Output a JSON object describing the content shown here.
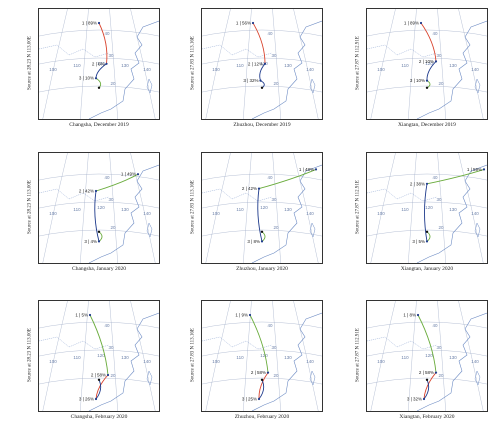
{
  "panels": [
    {
      "caption": "Changsha, December 2019",
      "source_label": "Source at 28.23 N 113.00E",
      "ticks": [
        "100",
        "110",
        "120",
        "130",
        "140",
        "40",
        "30",
        "20"
      ],
      "points": [
        {
          "label": "1 | 89%",
          "lon": 113.0,
          "lat": 55.0,
          "seg": "red"
        },
        {
          "label": "2 | 6%",
          "lon": 115.5,
          "lat": 38.0,
          "seg": "navy"
        },
        {
          "label": "3 | 10%",
          "lon": 112.0,
          "lat": 32.0,
          "seg": "green"
        }
      ]
    },
    {
      "caption": "Zhuzhou, December 2019",
      "source_label": "Source at 27.83 N 113.16E",
      "ticks": [
        "100",
        "110",
        "120",
        "130",
        "140",
        "40",
        "30",
        "20"
      ],
      "points": [
        {
          "label": "1 | 56%",
          "lon": 110.0,
          "lat": 55.0,
          "seg": "red"
        },
        {
          "label": "2 | 12%",
          "lon": 114.0,
          "lat": 38.0,
          "seg": "navy"
        },
        {
          "label": "3 | 32%",
          "lon": 112.5,
          "lat": 31.0,
          "seg": "navy"
        }
      ]
    },
    {
      "caption": "Xiangtan, December 2019",
      "source_label": "Source at 27.87 N 112.91E",
      "ticks": [
        "100",
        "110",
        "120",
        "130",
        "140",
        "40",
        "30",
        "20"
      ],
      "points": [
        {
          "label": "1 | 89%",
          "lon": 111.0,
          "lat": 55.0,
          "seg": "red"
        },
        {
          "label": "2 | 10%",
          "lon": 116.0,
          "lat": 39.0,
          "seg": "navy"
        },
        {
          "label": "3 | 10%",
          "lon": 113.0,
          "lat": 31.0,
          "seg": "green"
        }
      ]
    },
    {
      "caption": "Changsha, January 2020",
      "source_label": "Source at 28.23 N 113.00E",
      "ticks": [
        "100",
        "110",
        "120",
        "130",
        "140",
        "40",
        "30",
        "20"
      ],
      "points": [
        {
          "label": "1 | 49%",
          "lon": 126.0,
          "lat": 52.0,
          "seg": "green"
        },
        {
          "label": "2 | 42%",
          "lon": 112.0,
          "lat": 45.0,
          "seg": "navy"
        },
        {
          "label": "3 | 4%",
          "lon": 113.0,
          "lat": 24.0,
          "seg": "green"
        }
      ]
    },
    {
      "caption": "Zhuzhou, January 2020",
      "source_label": "Source at 27.83 N 113.16E",
      "ticks": [
        "100",
        "110",
        "120",
        "130",
        "140",
        "40",
        "30",
        "20"
      ],
      "points": [
        {
          "label": "1 | 48%",
          "lon": 131.0,
          "lat": 54.0,
          "seg": "green"
        },
        {
          "label": "2 | 42%",
          "lon": 112.0,
          "lat": 46.0,
          "seg": "navy"
        },
        {
          "label": "3 | 8%",
          "lon": 113.0,
          "lat": 24.0,
          "seg": "green"
        }
      ]
    },
    {
      "caption": "Xiangtan, January 2020",
      "source_label": "Source at 27.87 N 112.91E",
      "ticks": [
        "100",
        "110",
        "120",
        "130",
        "140",
        "40",
        "30",
        "20"
      ],
      "points": [
        {
          "label": "1 | 59%",
          "lon": 132.0,
          "lat": 54.0,
          "seg": "green"
        },
        {
          "label": "2 | 38%",
          "lon": 113.0,
          "lat": 48.0,
          "seg": "navy"
        },
        {
          "label": "3 | 5%",
          "lon": 113.0,
          "lat": 24.0,
          "seg": "green"
        }
      ]
    },
    {
      "caption": "Changsha, February 2020",
      "source_label": "Source at 28.23 N 113.00E",
      "ticks": [
        "100",
        "110",
        "120",
        "130",
        "140",
        "40",
        "30",
        "20"
      ],
      "points": [
        {
          "label": "1 | 5%",
          "lon": 110.0,
          "lat": 55.0,
          "seg": "green"
        },
        {
          "label": "2 | 58%",
          "lon": 116.0,
          "lat": 30.0,
          "seg": "red"
        },
        {
          "label": "3 | 26%",
          "lon": 112.0,
          "lat": 20.0,
          "seg": "navy"
        }
      ]
    },
    {
      "caption": "Zhuzhou, February 2020",
      "source_label": "Source at 27.83 N 113.16E",
      "ticks": [
        "100",
        "110",
        "120",
        "130",
        "140",
        "40",
        "30",
        "20"
      ],
      "points": [
        {
          "label": "1 | 9%",
          "lon": 109.0,
          "lat": 55.0,
          "seg": "green"
        },
        {
          "label": "2 | 58%",
          "lon": 115.0,
          "lat": 31.0,
          "seg": "red"
        },
        {
          "label": "3 | 25%",
          "lon": 112.0,
          "lat": 20.0,
          "seg": "navy"
        }
      ]
    },
    {
      "caption": "Xiangtan, February 2020",
      "source_label": "Source at 27.87 N 112.91E",
      "ticks": [
        "100",
        "110",
        "120",
        "130",
        "140",
        "40",
        "30",
        "20"
      ],
      "points": [
        {
          "label": "1 | 8%",
          "lon": 110.0,
          "lat": 55.0,
          "seg": "green"
        },
        {
          "label": "2 | 58%",
          "lon": 116.0,
          "lat": 31.0,
          "seg": "red"
        },
        {
          "label": "3 | 32%",
          "lon": 112.0,
          "lat": 20.0,
          "seg": "navy"
        }
      ]
    }
  ],
  "colors": {
    "red": "#d9452f",
    "navy": "#1f3b8c",
    "green": "#6aac3d",
    "grid": "#9aa7c4",
    "coast": "#6e8cc4",
    "border": "#333333"
  }
}
